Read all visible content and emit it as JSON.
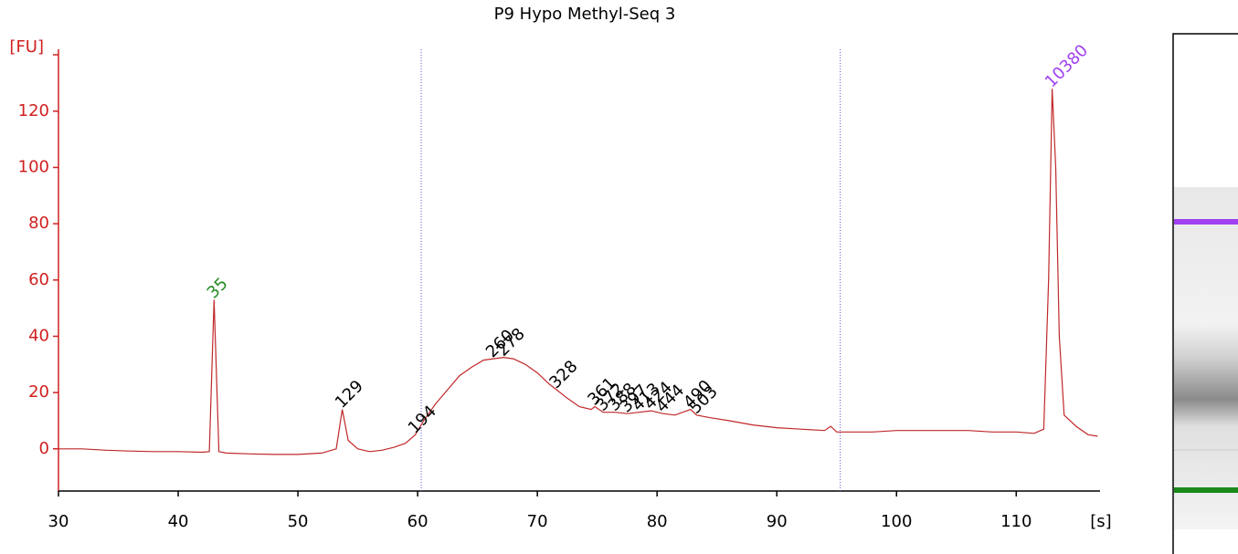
{
  "chart_data": {
    "type": "line",
    "title": "P9 Hypo Methyl-Seq 3",
    "y_label": "[FU]",
    "x_label": "[s]",
    "xlim": [
      30,
      117
    ],
    "xticks": [
      30,
      40,
      50,
      60,
      70,
      80,
      90,
      100,
      110
    ],
    "ylim": [
      -15,
      142
    ],
    "yticks": [
      0,
      20,
      40,
      60,
      80,
      100,
      120
    ],
    "vlines": [
      60.3,
      95.3
    ],
    "x": [
      30,
      32,
      34,
      36,
      38,
      40,
      42,
      42.6,
      43,
      43.4,
      44,
      46,
      48,
      50,
      52,
      53.2,
      53.7,
      54.2,
      55,
      56,
      57,
      58,
      59,
      59.8,
      60.5,
      61.5,
      62.5,
      63.5,
      64.5,
      65.5,
      66.3,
      67.2,
      68,
      69,
      70,
      71,
      71.6,
      72.5,
      73.5,
      74.5,
      74.8,
      75.5,
      76.5,
      77.5,
      78.5,
      79.5,
      80.5,
      81.5,
      82.8,
      83.3,
      84.5,
      86,
      88,
      90,
      92,
      94,
      94.5,
      95,
      98,
      100,
      104,
      106,
      108,
      110,
      111.5,
      112.3,
      112.7,
      113,
      113.3,
      113.6,
      114,
      114.5,
      115,
      116,
      116.8
    ],
    "series": [
      {
        "name": "P9 Hypo Methyl-Seq 3",
        "color": "#c0282a",
        "values": [
          0,
          0,
          -0.5,
          -0.8,
          -1,
          -1,
          -1.2,
          -1,
          53,
          -1,
          -1.5,
          -1.8,
          -2,
          -2,
          -1.5,
          0,
          14,
          3,
          0,
          -1,
          -0.5,
          0.5,
          2,
          5,
          10,
          16,
          21,
          26,
          29,
          31.5,
          32,
          32.5,
          32,
          30,
          27,
          23,
          21,
          18,
          15,
          14,
          15,
          13,
          13,
          12.5,
          13,
          13.5,
          12.5,
          12,
          14,
          12,
          11,
          10,
          8.5,
          7.5,
          7,
          6.5,
          8,
          6,
          6,
          6.5,
          6.5,
          6.5,
          6,
          6,
          5.5,
          7,
          60,
          128,
          100,
          40,
          12,
          10,
          8,
          5,
          4.5
        ]
      }
    ],
    "peaks": {
      "x": [
        43,
        53.7,
        59.8,
        66.3,
        67.2,
        71.6,
        74.8,
        75.5,
        76.5,
        77.5,
        78.5,
        79.5,
        80.5,
        82.8,
        83.3,
        113
      ],
      "labels": [
        35,
        129,
        194,
        260,
        278,
        328,
        361,
        372,
        388,
        397,
        413,
        424,
        444,
        490,
        503,
        10380
      ],
      "colors": [
        "#228b22",
        "#000000",
        "#000000",
        "#000000",
        "#000000",
        "#000000",
        "#000000",
        "#000000",
        "#000000",
        "#000000",
        "#000000",
        "#000000",
        "#000000",
        "#000000",
        "#000000",
        "#a040f0"
      ]
    }
  }
}
